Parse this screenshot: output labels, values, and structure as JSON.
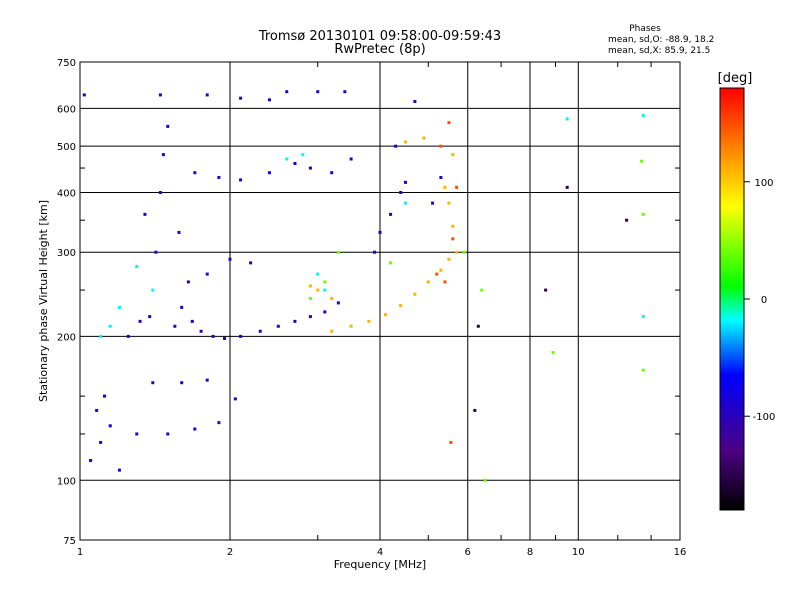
{
  "chart_data": {
    "type": "scatter",
    "title": "Tromsø 20130101 09:58:00-09:59:43",
    "subtitle": "RwPretec (8p)",
    "xlabel": "Frequency [MHz]",
    "ylabel": "Stationary phase Virtual Height [km]",
    "x_scale": "log",
    "y_scale": "log",
    "xlim": [
      1,
      16
    ],
    "ylim": [
      75,
      750
    ],
    "x_ticks": [
      1,
      2,
      4,
      6,
      8,
      10,
      16
    ],
    "x_tick_labels": [
      "1",
      "2",
      "4",
      "6",
      "8",
      "10",
      "16"
    ],
    "y_ticks": [
      75,
      100,
      200,
      300,
      400,
      500,
      600,
      750
    ],
    "y_tick_labels": [
      "75",
      "100",
      "200",
      "300",
      "400",
      "500",
      "600",
      "750"
    ],
    "grid": true,
    "stats": {
      "title": "Phases",
      "line_o": "mean, sd,O: -88.9, 18.2",
      "line_x": "mean, sd,X:  85.9, 21.5"
    },
    "colorbar": {
      "label": "[deg]",
      "min": -180,
      "max": 180,
      "ticks": [
        100,
        0,
        -100
      ],
      "tick_labels": [
        "100",
        "0",
        "-100"
      ]
    },
    "series": [
      {
        "color_value": -95,
        "points": [
          [
            1.25,
            200
          ],
          [
            1.32,
            215
          ],
          [
            1.38,
            220
          ],
          [
            1.42,
            300
          ],
          [
            1.45,
            400
          ],
          [
            1.47,
            480
          ],
          [
            1.5,
            550
          ],
          [
            1.45,
            640
          ],
          [
            1.55,
            210
          ],
          [
            1.6,
            230
          ],
          [
            1.68,
            215
          ],
          [
            1.75,
            205
          ],
          [
            1.85,
            200
          ],
          [
            1.95,
            198
          ],
          [
            2.1,
            200
          ],
          [
            2.3,
            205
          ],
          [
            2.5,
            210
          ],
          [
            2.7,
            215
          ],
          [
            2.9,
            220
          ],
          [
            3.1,
            225
          ],
          [
            3.3,
            235
          ],
          [
            1.65,
            260
          ],
          [
            1.8,
            270
          ],
          [
            2.0,
            290
          ],
          [
            2.2,
            285
          ],
          [
            1.7,
            440
          ],
          [
            1.9,
            430
          ],
          [
            2.1,
            425
          ],
          [
            2.4,
            440
          ],
          [
            2.7,
            460
          ],
          [
            2.9,
            450
          ],
          [
            3.2,
            440
          ],
          [
            3.5,
            470
          ],
          [
            1.8,
            640
          ],
          [
            2.1,
            630
          ],
          [
            2.4,
            625
          ],
          [
            2.6,
            650
          ],
          [
            3.0,
            650
          ],
          [
            3.4,
            650
          ],
          [
            1.3,
            125
          ],
          [
            1.5,
            125
          ],
          [
            1.7,
            128
          ],
          [
            1.9,
            132
          ],
          [
            2.05,
            148
          ],
          [
            1.4,
            160
          ],
          [
            1.6,
            160
          ],
          [
            1.8,
            162
          ],
          [
            1.05,
            110
          ],
          [
            1.1,
            120
          ],
          [
            1.15,
            130
          ],
          [
            1.08,
            140
          ],
          [
            1.12,
            150
          ],
          [
            1.2,
            105
          ],
          [
            3.9,
            300
          ],
          [
            4.0,
            330
          ],
          [
            4.2,
            360
          ],
          [
            4.4,
            400
          ],
          [
            4.5,
            420
          ],
          [
            4.3,
            500
          ],
          [
            4.7,
            620
          ],
          [
            5.3,
            430
          ],
          [
            5.1,
            380
          ],
          [
            1.02,
            640
          ],
          [
            1.35,
            360
          ],
          [
            1.58,
            330
          ]
        ]
      },
      {
        "color_value": 110,
        "points": [
          [
            3.2,
            205
          ],
          [
            3.5,
            210
          ],
          [
            3.8,
            215
          ],
          [
            4.1,
            222
          ],
          [
            4.4,
            232
          ],
          [
            4.7,
            245
          ],
          [
            5.0,
            260
          ],
          [
            5.3,
            275
          ],
          [
            5.5,
            290
          ],
          [
            5.7,
            300
          ],
          [
            5.6,
            340
          ],
          [
            5.5,
            380
          ],
          [
            5.4,
            410
          ],
          [
            5.6,
            480
          ],
          [
            4.9,
            520
          ],
          [
            4.5,
            510
          ],
          [
            3.0,
            250
          ],
          [
            3.2,
            240
          ],
          [
            2.9,
            255
          ]
        ]
      },
      {
        "color_value": 150,
        "points": [
          [
            5.2,
            270
          ],
          [
            5.4,
            260
          ],
          [
            5.6,
            320
          ],
          [
            5.5,
            560
          ],
          [
            5.3,
            500
          ],
          [
            5.55,
            120
          ],
          [
            5.7,
            410
          ]
        ]
      },
      {
        "color_value": -20,
        "points": [
          [
            1.1,
            200
          ],
          [
            1.15,
            210
          ],
          [
            1.2,
            230
          ],
          [
            1.4,
            250
          ],
          [
            1.3,
            280
          ],
          [
            3.1,
            250
          ],
          [
            3.0,
            270
          ],
          [
            2.6,
            470
          ],
          [
            2.8,
            480
          ],
          [
            4.5,
            380
          ],
          [
            9.5,
            570
          ],
          [
            13.5,
            220
          ],
          [
            13.5,
            580
          ]
        ]
      },
      {
        "color_value": 40,
        "points": [
          [
            2.9,
            240
          ],
          [
            3.1,
            260
          ],
          [
            3.3,
            300
          ],
          [
            4.2,
            285
          ],
          [
            5.9,
            300
          ],
          [
            6.5,
            100
          ],
          [
            6.4,
            250
          ],
          [
            13.5,
            170
          ],
          [
            13.4,
            465
          ],
          [
            13.5,
            360
          ],
          [
            8.9,
            185
          ]
        ]
      },
      {
        "color_value": -150,
        "points": [
          [
            6.3,
            210
          ],
          [
            8.6,
            250
          ],
          [
            12.5,
            350
          ],
          [
            6.2,
            140
          ],
          [
            9.5,
            410
          ]
        ]
      }
    ]
  }
}
